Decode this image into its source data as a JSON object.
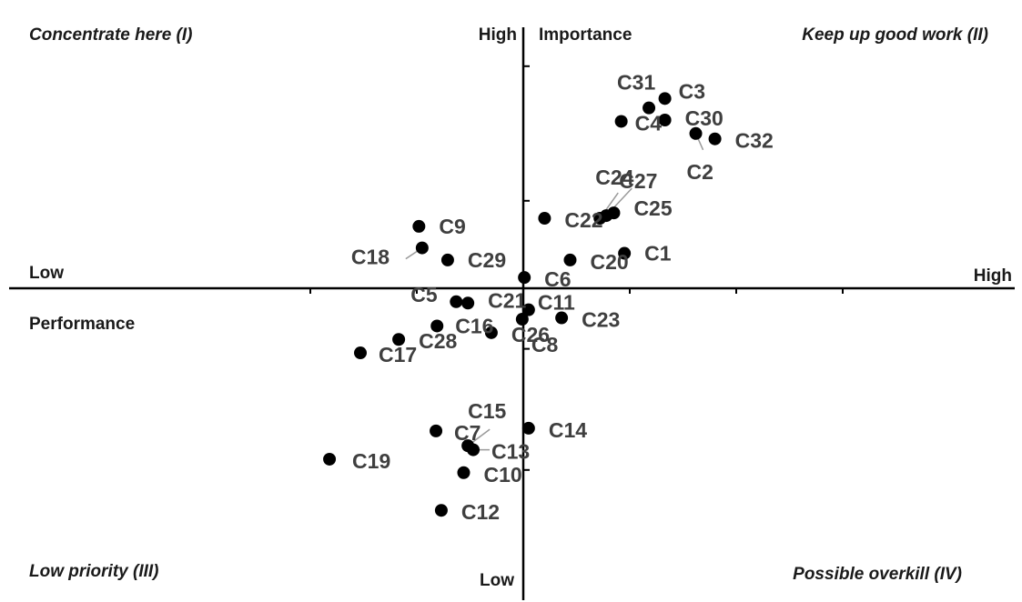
{
  "chart_data": {
    "type": "scatter",
    "title": "",
    "quadrants": {
      "q1": "Concentrate here (I)",
      "q2": "Keep up good work (II)",
      "q3": "Low priority (III)",
      "q4": "Possible overkill (IV)"
    },
    "x_axis": {
      "name": "Performance",
      "low": "Low",
      "high": "High"
    },
    "y_axis": {
      "name": "Importance",
      "low": "Low",
      "high": "High"
    },
    "xlim": [
      -2.4,
      2.4
    ],
    "ylim": [
      -2.0,
      1.6
    ],
    "grid": false,
    "legend": "none",
    "points": [
      {
        "label": "C1",
        "x": 0.95,
        "y": 0.26
      },
      {
        "label": "C2",
        "x": 1.62,
        "y": 1.15
      },
      {
        "label": "C3",
        "x": 1.33,
        "y": 1.41
      },
      {
        "label": "C4",
        "x": 0.92,
        "y": 1.24
      },
      {
        "label": "C5",
        "x": -0.63,
        "y": -0.1
      },
      {
        "label": "C6",
        "x": 0.01,
        "y": 0.08
      },
      {
        "label": "C7",
        "x": -0.82,
        "y": -1.06
      },
      {
        "label": "C8",
        "x": -0.01,
        "y": -0.23
      },
      {
        "label": "C9",
        "x": -0.98,
        "y": 0.46
      },
      {
        "label": "C10",
        "x": -0.56,
        "y": -1.37
      },
      {
        "label": "C11",
        "x": 0.05,
        "y": -0.16
      },
      {
        "label": "C12",
        "x": -0.77,
        "y": -1.65
      },
      {
        "label": "C13",
        "x": -0.47,
        "y": -1.2
      },
      {
        "label": "C14",
        "x": 0.05,
        "y": -1.04
      },
      {
        "label": "C15",
        "x": -0.52,
        "y": -1.17
      },
      {
        "label": "C16",
        "x": -0.81,
        "y": -0.28
      },
      {
        "label": "C17",
        "x": -1.53,
        "y": -0.48
      },
      {
        "label": "C18",
        "x": -0.95,
        "y": 0.3
      },
      {
        "label": "C19",
        "x": -1.82,
        "y": -1.27
      },
      {
        "label": "C20",
        "x": 0.44,
        "y": 0.21
      },
      {
        "label": "C21",
        "x": -0.52,
        "y": -0.11
      },
      {
        "label": "C22",
        "x": 0.2,
        "y": 0.52
      },
      {
        "label": "C23",
        "x": 0.36,
        "y": -0.22
      },
      {
        "label": "C24",
        "x": 0.72,
        "y": 0.52
      },
      {
        "label": "C25",
        "x": 0.85,
        "y": 0.56
      },
      {
        "label": "C26",
        "x": -0.3,
        "y": -0.33
      },
      {
        "label": "C27",
        "x": 0.78,
        "y": 0.54
      },
      {
        "label": "C28",
        "x": -1.17,
        "y": -0.38
      },
      {
        "label": "C29",
        "x": -0.71,
        "y": 0.21
      },
      {
        "label": "C30",
        "x": 1.33,
        "y": 1.25
      },
      {
        "label": "C31",
        "x": 1.18,
        "y": 1.34
      },
      {
        "label": "C32",
        "x": 1.8,
        "y": 1.11
      }
    ]
  }
}
